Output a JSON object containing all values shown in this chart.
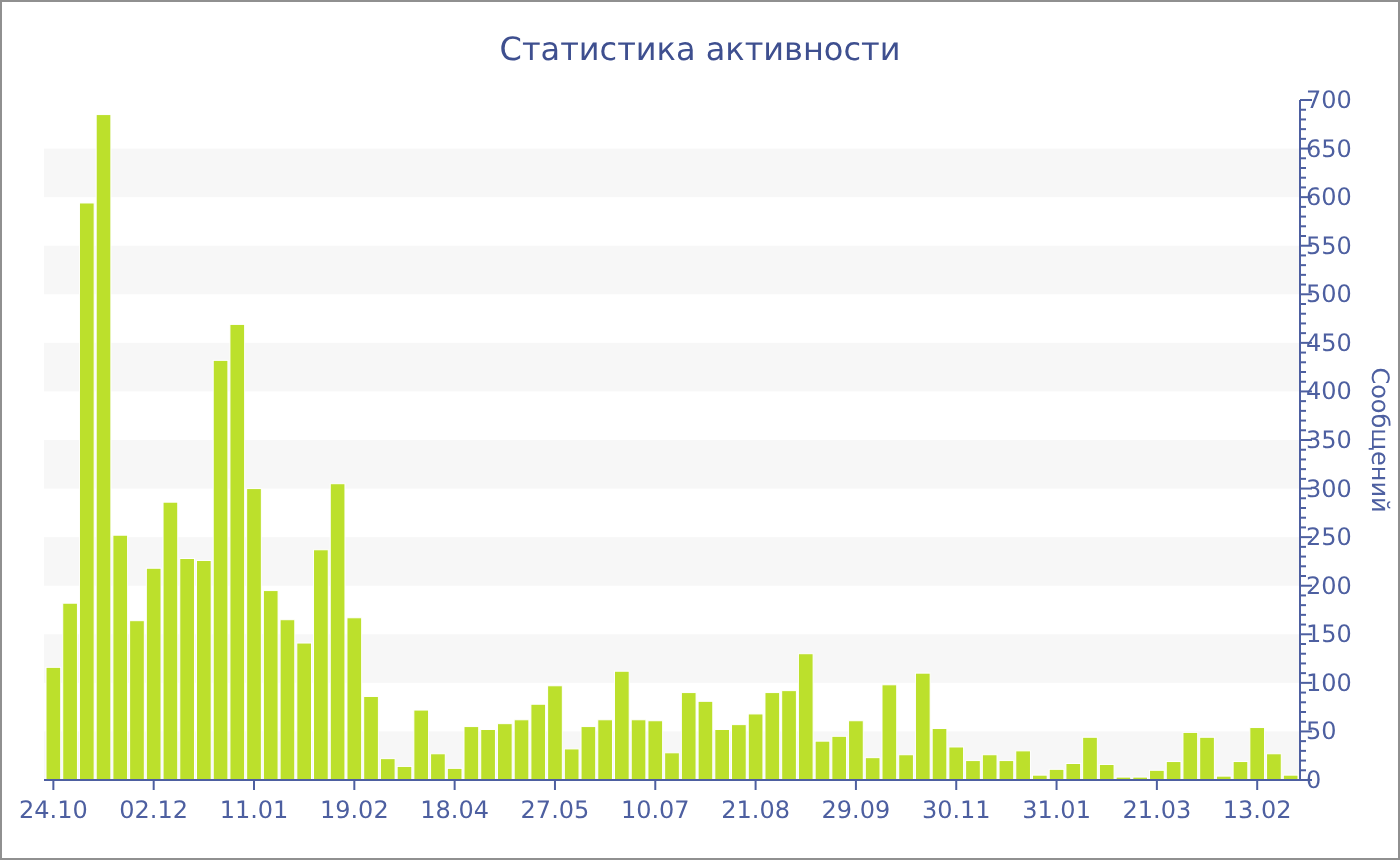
{
  "chart_data": {
    "type": "bar",
    "title": "Статистика активности",
    "ylabel": "Сообщений",
    "color": "#bce02c",
    "categories": [
      "24.10",
      null,
      null,
      null,
      null,
      null,
      "02.12",
      null,
      null,
      null,
      null,
      null,
      "11.01",
      null,
      null,
      null,
      null,
      null,
      "19.02",
      null,
      null,
      null,
      null,
      null,
      "18.04",
      null,
      null,
      null,
      null,
      null,
      "27.05",
      null,
      null,
      null,
      null,
      null,
      "10.07",
      null,
      null,
      null,
      null,
      null,
      "21.08",
      null,
      null,
      null,
      null,
      null,
      "29.09",
      null,
      null,
      null,
      null,
      null,
      "30.11",
      null,
      null,
      null,
      null,
      null,
      "31.01",
      null,
      null,
      null,
      null,
      null,
      "21.03",
      null,
      null,
      null,
      null,
      null,
      "13.02",
      null,
      null
    ],
    "values": [
      116,
      182,
      594,
      685,
      252,
      164,
      218,
      286,
      228,
      226,
      432,
      469,
      300,
      195,
      165,
      141,
      237,
      305,
      167,
      86,
      22,
      14,
      72,
      27,
      12,
      55,
      52,
      58,
      62,
      78,
      97,
      32,
      55,
      62,
      112,
      62,
      61,
      28,
      90,
      81,
      52,
      57,
      68,
      90,
      92,
      130,
      40,
      45,
      61,
      23,
      98,
      26,
      110,
      53,
      34,
      20,
      26,
      20,
      30,
      5,
      11,
      17,
      44,
      16,
      3,
      3,
      10,
      19,
      49,
      44,
      4,
      19,
      54,
      27,
      5
    ],
    "ylim": [
      0,
      700
    ],
    "yticks": [
      0,
      50,
      100,
      150,
      200,
      250,
      300,
      350,
      400,
      450,
      500,
      550,
      600,
      650,
      700
    ]
  }
}
